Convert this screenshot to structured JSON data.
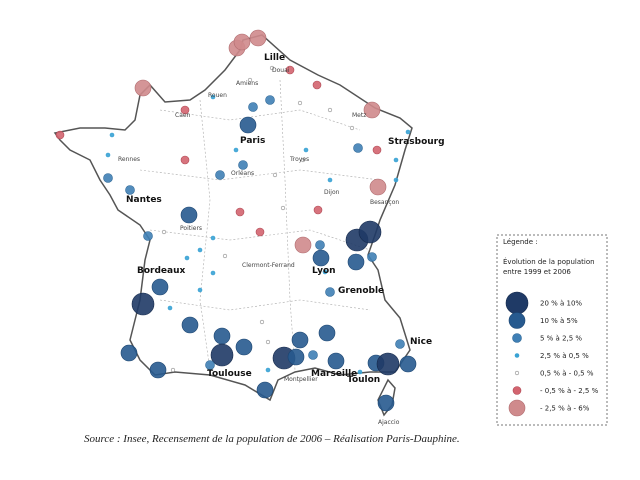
{
  "map": {
    "cities": [
      "Lille",
      "Douai",
      "Amiens",
      "Rouen",
      "Caen",
      "Metz",
      "Paris",
      "Strasbourg",
      "Rennes",
      "Troyes",
      "Orléans",
      "Nantes",
      "Dijon",
      "Besançon",
      "Poitiers",
      "Lyon",
      "Clermont-Ferrand",
      "Bordeaux",
      "Grenoble",
      "Nice",
      "Toulouse",
      "Marseille",
      "Toulon",
      "Montpellier",
      "Ajaccio"
    ],
    "legend": {
      "heading": "Légende :",
      "title": [
        "Évolution de la population",
        "entre 1999 et 2006"
      ],
      "entries": [
        "20 % à 10%",
        "10 % à 5%",
        "5 % à 2,5 %",
        "2,5 % à 0,5 %",
        "0,5 % à - 0,5 %",
        "- 0,5 % à - 2,5 %",
        "- 2,5 % à - 6%"
      ]
    }
  },
  "source": "Source : Insee, Recensement de la population de 2006 – Réalisation Paris-Dauphine."
}
